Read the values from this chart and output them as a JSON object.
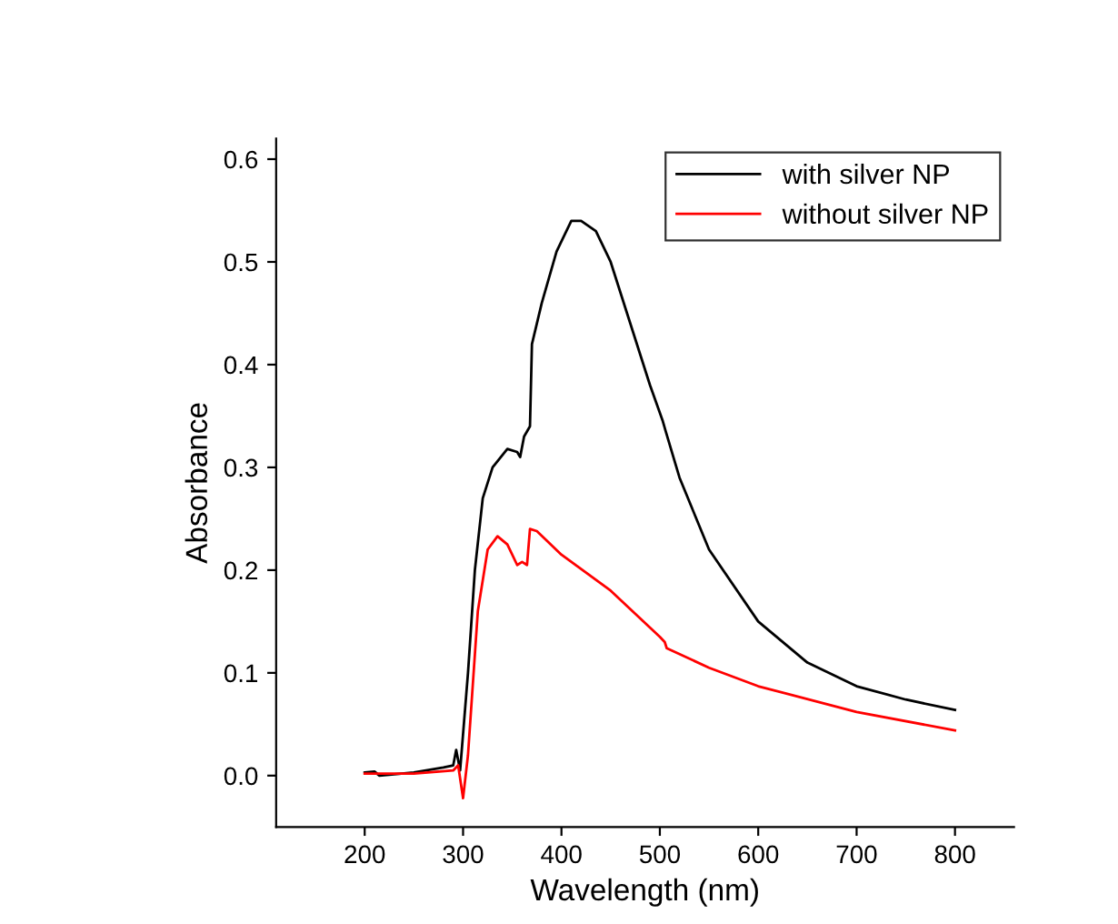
{
  "chart_data": {
    "type": "line",
    "xlabel": "Wavelength (nm)",
    "ylabel": "Absorbance",
    "xlim": [
      110,
      860
    ],
    "ylim": [
      -0.05,
      0.62
    ],
    "xticks": [
      200,
      300,
      400,
      500,
      600,
      700,
      800
    ],
    "yticks": [
      {
        "value": 0,
        "label": "0.0"
      },
      0.1,
      0.2,
      0.3,
      0.4,
      0.5,
      0.6
    ],
    "legend": "top right",
    "grid": false,
    "line_style": "solid",
    "series": [
      {
        "name": "with silver NP",
        "color": "#000000",
        "x": [
          200,
          210,
          215,
          250,
          280,
          290,
          293,
          297,
          305,
          312,
          320,
          330,
          345,
          355,
          358,
          362,
          368,
          370,
          380,
          395,
          410,
          420,
          435,
          450,
          470,
          490,
          503,
          506,
          520,
          550,
          600,
          650,
          700,
          750,
          800
        ],
        "values": [
          0.003,
          0.004,
          0.0,
          0.003,
          0.008,
          0.01,
          0.025,
          0.005,
          0.1,
          0.2,
          0.27,
          0.3,
          0.318,
          0.315,
          0.31,
          0.33,
          0.34,
          0.42,
          0.46,
          0.51,
          0.54,
          0.54,
          0.53,
          0.5,
          0.44,
          0.38,
          0.345,
          0.335,
          0.29,
          0.22,
          0.15,
          0.11,
          0.087,
          0.074,
          0.064
        ]
      },
      {
        "name": "without silver NP",
        "color": "#ff0000",
        "x": [
          200,
          250,
          290,
          295,
          300,
          305,
          315,
          325,
          335,
          345,
          355,
          360,
          365,
          368,
          375,
          400,
          450,
          500,
          505,
          507,
          550,
          600,
          700,
          800
        ],
        "values": [
          0.002,
          0.002,
          0.005,
          0.01,
          -0.022,
          0.02,
          0.16,
          0.22,
          0.233,
          0.225,
          0.205,
          0.208,
          0.205,
          0.24,
          0.238,
          0.215,
          0.18,
          0.135,
          0.13,
          0.124,
          0.105,
          0.087,
          0.062,
          0.044
        ]
      }
    ]
  }
}
